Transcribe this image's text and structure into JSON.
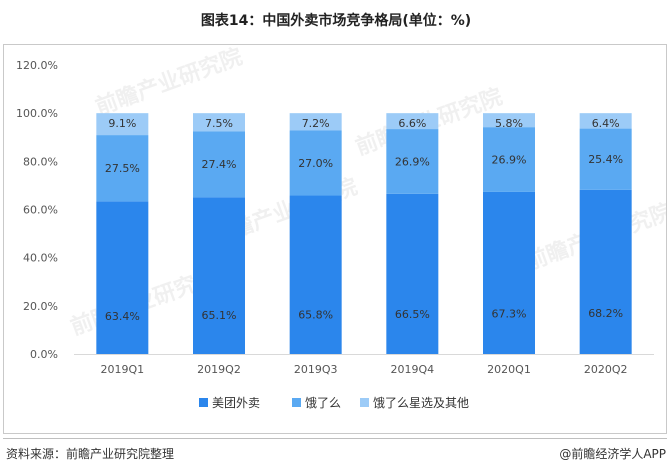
{
  "title": "图表14：中国外卖市场竞争格局(单位：%)",
  "source": "资料来源：前瞻产业研究院整理",
  "brand": "@前瞻经济学人APP",
  "watermark": "前瞻产业研究院",
  "colors": {
    "meituan": "#2b86ec",
    "eleme": "#5aa9f2",
    "other": "#9ccbf7",
    "axis": "#d9d9d9",
    "text": "#333333"
  },
  "chart_data": {
    "type": "bar",
    "stacked": true,
    "categories": [
      "2019Q1",
      "2019Q2",
      "2019Q3",
      "2019Q4",
      "2020Q1",
      "2020Q2"
    ],
    "series": [
      {
        "name": "美团外卖",
        "values": [
          63.4,
          65.1,
          65.8,
          66.5,
          67.3,
          68.2
        ],
        "labels": [
          "63.4%",
          "65.1%",
          "65.8%",
          "66.5%",
          "67.3%",
          "68.2%"
        ]
      },
      {
        "name": "饿了么",
        "values": [
          27.5,
          27.4,
          27.0,
          26.9,
          26.9,
          25.4
        ],
        "labels": [
          "27.5%",
          "27.4%",
          "27.0%",
          "26.9%",
          "26.9%",
          "25.4%"
        ]
      },
      {
        "name": "饿了么星选及其他",
        "values": [
          9.1,
          7.5,
          7.2,
          6.6,
          5.8,
          6.4
        ],
        "labels": [
          "9.1%",
          "7.5%",
          "7.2%",
          "6.6%",
          "5.8%",
          "6.4%"
        ]
      }
    ],
    "ylim": [
      0,
      120
    ],
    "yticks": [
      "0.0%",
      "20.0%",
      "40.0%",
      "60.0%",
      "80.0%",
      "100.0%",
      "120.0%"
    ],
    "grid": false,
    "legend_position": "bottom"
  }
}
